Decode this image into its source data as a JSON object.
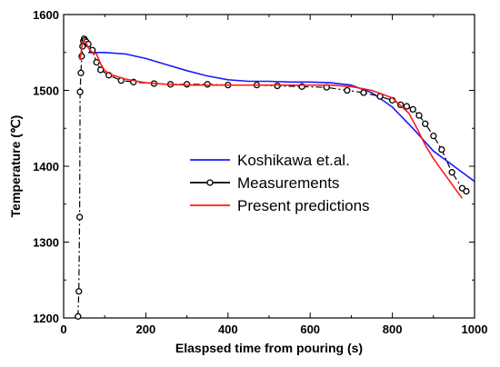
{
  "chart_data": {
    "type": "line",
    "xlabel": "Elaspsed time from pouring (s)",
    "ylabel": "Temperature (℃)",
    "xlim": [
      0,
      1000
    ],
    "ylim": [
      1200,
      1600
    ],
    "xticks": [
      0,
      200,
      400,
      600,
      800,
      1000
    ],
    "yticks": [
      1200,
      1300,
      1400,
      1500,
      1600
    ],
    "grid": false,
    "legend_position": "center-right",
    "series": [
      {
        "name": "Koshikawa et.al.",
        "color": "#1a1aff",
        "style": "line",
        "x": [
          60,
          100,
          150,
          200,
          250,
          300,
          350,
          400,
          450,
          500,
          550,
          600,
          650,
          700,
          750,
          800,
          850,
          900,
          950,
          1000
        ],
        "y": [
          1550,
          1550,
          1548,
          1542,
          1534,
          1526,
          1519,
          1514,
          1512,
          1512,
          1511,
          1511,
          1510,
          1507,
          1497,
          1478,
          1450,
          1420,
          1400,
          1380
        ]
      },
      {
        "name": "Measurements",
        "color": "#000000",
        "style": "line-circle-dashed",
        "x": [
          35,
          37,
          39,
          40,
          42,
          44,
          46,
          48,
          50,
          52,
          55,
          60,
          70,
          80,
          90,
          110,
          140,
          170,
          220,
          260,
          300,
          350,
          400,
          470,
          520,
          580,
          640,
          690,
          730,
          770,
          800,
          820,
          835,
          850,
          865,
          880,
          900,
          920,
          945,
          970,
          980
        ],
        "y": [
          1202,
          1235,
          1333,
          1498,
          1523,
          1545,
          1558,
          1565,
          1568,
          1566,
          1564,
          1561,
          1553,
          1537,
          1527,
          1520,
          1513,
          1511,
          1509,
          1508,
          1508,
          1508,
          1507,
          1507,
          1506,
          1505,
          1504,
          1500,
          1497,
          1492,
          1487,
          1481,
          1479,
          1475,
          1467,
          1456,
          1440,
          1422,
          1392,
          1371,
          1367
        ]
      },
      {
        "name": "Present predictions",
        "color": "#ff1a1a",
        "style": "line",
        "x": [
          40,
          45,
          50,
          55,
          60,
          70,
          80,
          90,
          100,
          120,
          150,
          200,
          250,
          300,
          350,
          400,
          450,
          500,
          550,
          600,
          650,
          700,
          750,
          800,
          820,
          840,
          860,
          880,
          900,
          920,
          940,
          960,
          970
        ],
        "y": [
          1540,
          1560,
          1566,
          1562,
          1556,
          1550,
          1548,
          1535,
          1526,
          1520,
          1515,
          1510,
          1508,
          1507,
          1507,
          1507,
          1507,
          1507,
          1507,
          1507,
          1507,
          1505,
          1500,
          1490,
          1480,
          1470,
          1450,
          1428,
          1410,
          1395,
          1380,
          1365,
          1358
        ]
      }
    ]
  }
}
